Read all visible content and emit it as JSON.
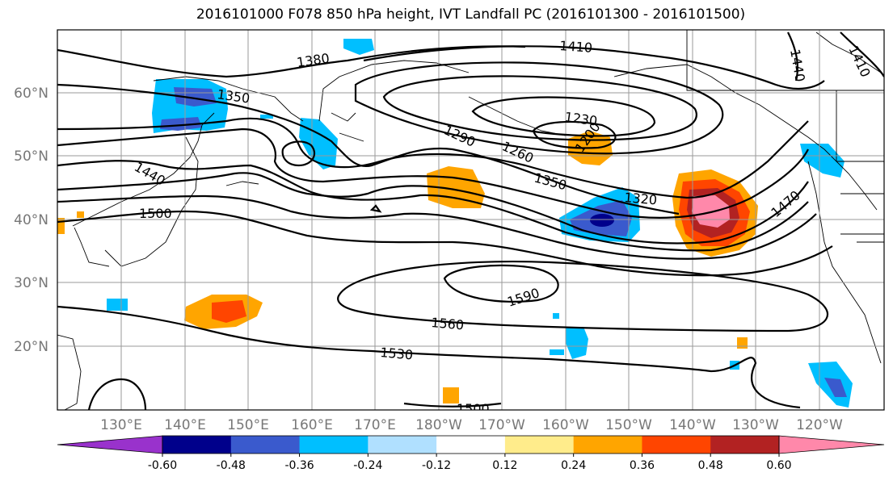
{
  "title": "2016101000 F078 850 hPa height, IVT Landfall PC (2016101300 - 2016101500)",
  "map": {
    "lon_labels": [
      "130°E",
      "140°E",
      "150°E",
      "160°E",
      "170°E",
      "180°W",
      "170°W",
      "160°W",
      "150°W",
      "140°W",
      "130°W",
      "120°W"
    ],
    "lat_labels": [
      "60°N",
      "50°N",
      "40°N",
      "30°N",
      "20°N"
    ],
    "contour_labels": [
      "1380",
      "1410",
      "1350",
      "1230",
      "1290",
      "1260",
      "1200",
      "1440",
      "1350",
      "1320",
      "1500",
      "1470",
      "1590",
      "1560",
      "1530",
      "1500",
      "1440",
      "1410"
    ]
  },
  "colorbar": {
    "ticks": [
      "-0.60",
      "-0.48",
      "-0.36",
      "-0.24",
      "-0.12",
      "0.12",
      "0.24",
      "0.36",
      "0.48",
      "0.60"
    ],
    "colors": [
      "#9932cc",
      "#00008b",
      "#3a5acd",
      "#00bfff",
      "#b0e0ff",
      "#ffffff",
      "#ffec8b",
      "#ffa500",
      "#ff4500",
      "#b22222",
      "#ff88aa"
    ]
  },
  "shading_colors": {
    "light_blue": "#00bfff",
    "mid_blue": "#3a5acd",
    "dark_blue": "#00008b",
    "yellow": "#ffec8b",
    "orange": "#ffa500",
    "red_orange": "#ff4500",
    "dark_red": "#b22222",
    "pink": "#ff88aa"
  }
}
